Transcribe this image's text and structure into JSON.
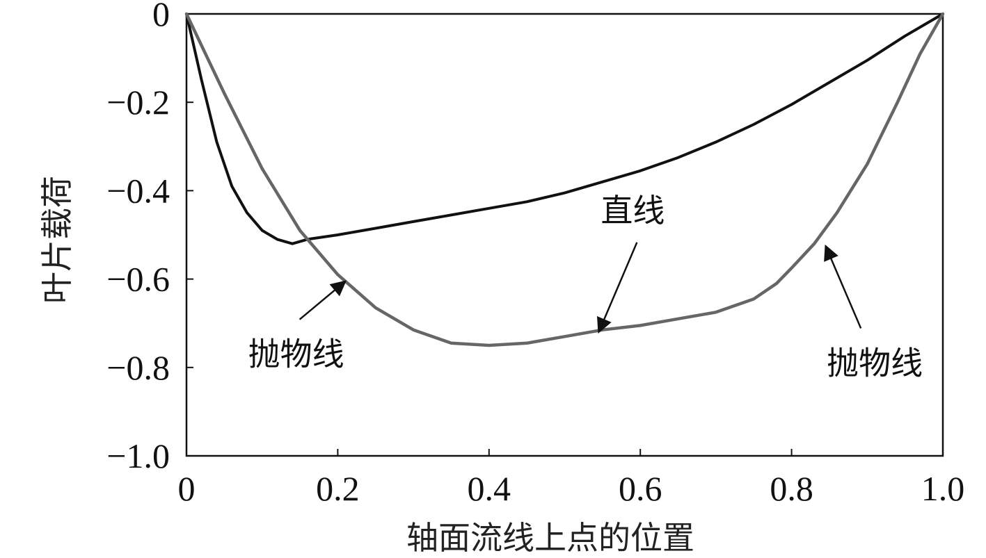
{
  "chart_data": {
    "type": "line",
    "xlabel": "轴面流线上点的位置",
    "ylabel": "叶片载荷",
    "xlim": [
      0,
      1.0
    ],
    "ylim": [
      -1.0,
      0
    ],
    "x_ticks": [
      "0",
      "0.2",
      "0.4",
      "0.6",
      "0.8",
      "1.0"
    ],
    "x_tick_values": [
      0,
      0.2,
      0.4,
      0.6,
      0.8,
      1.0
    ],
    "y_ticks": [
      "0",
      "−0.2",
      "−0.4",
      "−0.6",
      "−0.8",
      "−1.0"
    ],
    "y_tick_values": [
      0,
      -0.2,
      -0.4,
      -0.6,
      -0.8,
      -1.0
    ],
    "grid": false,
    "series": [
      {
        "color": "#111111",
        "x": [
          0,
          0.02,
          0.04,
          0.06,
          0.08,
          0.1,
          0.12,
          0.14,
          0.16,
          0.2,
          0.25,
          0.3,
          0.35,
          0.4,
          0.45,
          0.5,
          0.55,
          0.6,
          0.65,
          0.7,
          0.75,
          0.8,
          0.85,
          0.9,
          0.95,
          1.0
        ],
        "y": [
          0,
          -0.15,
          -0.29,
          -0.39,
          -0.45,
          -0.49,
          -0.51,
          -0.52,
          -0.51,
          -0.5,
          -0.485,
          -0.47,
          -0.455,
          -0.44,
          -0.425,
          -0.405,
          -0.38,
          -0.355,
          -0.325,
          -0.29,
          -0.25,
          -0.205,
          -0.155,
          -0.105,
          -0.05,
          0
        ]
      },
      {
        "color": "#666666",
        "x": [
          0,
          0.05,
          0.1,
          0.15,
          0.2,
          0.25,
          0.3,
          0.35,
          0.4,
          0.45,
          0.5,
          0.55,
          0.6,
          0.65,
          0.7,
          0.75,
          0.78,
          0.8,
          0.83,
          0.86,
          0.9,
          0.94,
          0.97,
          1.0
        ],
        "y": [
          0,
          -0.18,
          -0.35,
          -0.49,
          -0.59,
          -0.665,
          -0.715,
          -0.745,
          -0.75,
          -0.745,
          -0.73,
          -0.715,
          -0.705,
          -0.69,
          -0.675,
          -0.645,
          -0.61,
          -0.575,
          -0.52,
          -0.45,
          -0.34,
          -0.2,
          -0.09,
          0
        ]
      }
    ],
    "annotations": [
      {
        "text": "直线",
        "target": [
          0.545,
          -0.72
        ],
        "text_pos": [
          0.59,
          -0.47
        ]
      },
      {
        "text": "抛物线",
        "target": [
          0.21,
          -0.605
        ],
        "text_pos": [
          0.145,
          -0.77
        ]
      },
      {
        "text": "抛物线",
        "target": [
          0.845,
          -0.525
        ],
        "text_pos": [
          0.91,
          -0.79
        ]
      }
    ]
  }
}
